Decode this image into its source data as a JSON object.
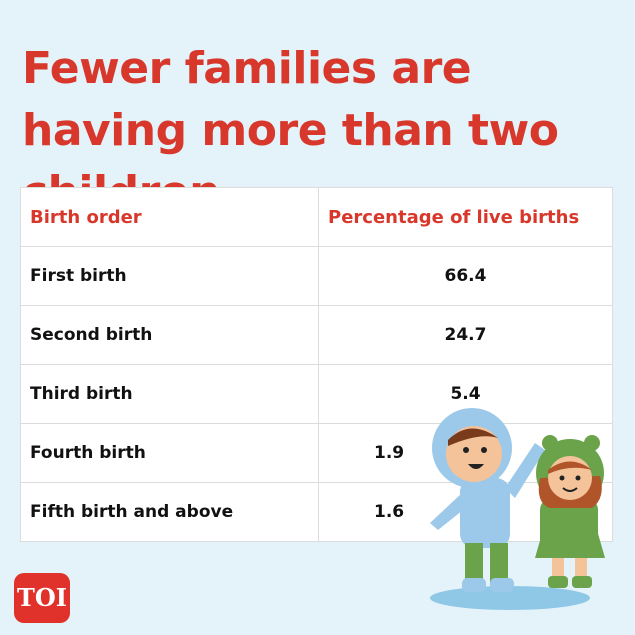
{
  "title": "Fewer families are having more than two children",
  "table": {
    "header": [
      "Birth order",
      "Percentage of live births"
    ],
    "rows": [
      [
        "First birth",
        "66.4"
      ],
      [
        "Second birth",
        "24.7"
      ],
      [
        "Third birth",
        "5.4"
      ],
      [
        "Fourth birth",
        "1.9"
      ],
      [
        "Fifth birth and above",
        "1.6"
      ]
    ]
  },
  "logo": "TOI"
}
